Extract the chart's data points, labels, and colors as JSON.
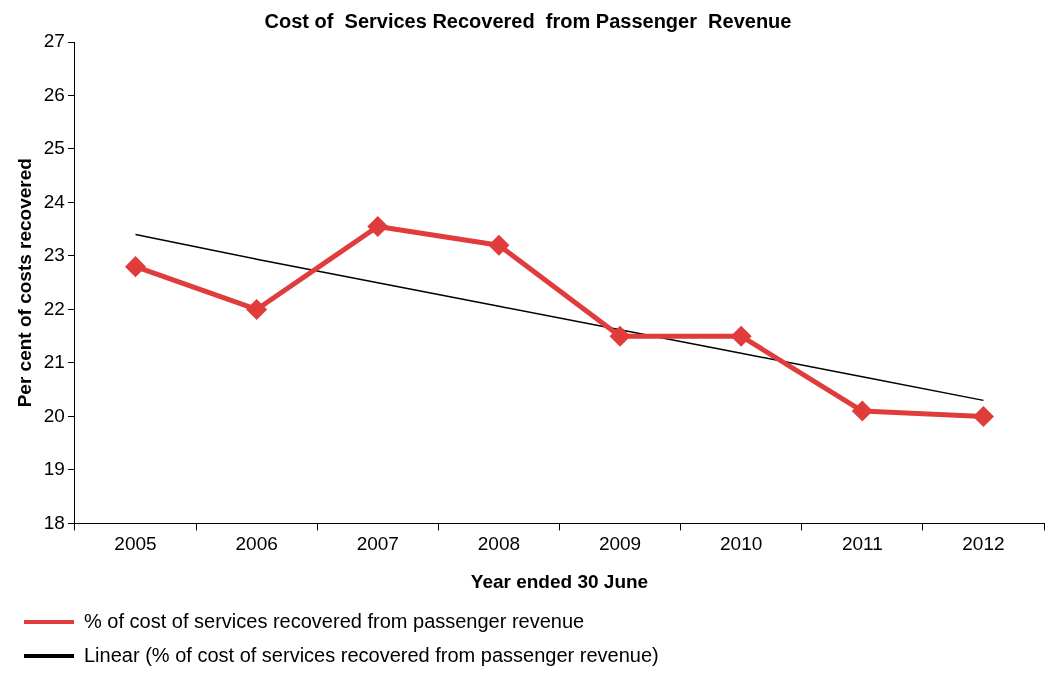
{
  "chart_data": {
    "type": "line",
    "title": "Cost of  Services Recovered  from Passenger  Revenue",
    "xlabel": "Year ended 30 June",
    "ylabel": "Per cent of costs recovered",
    "categories": [
      "2005",
      "2006",
      "2007",
      "2008",
      "2009",
      "2010",
      "2011",
      "2012"
    ],
    "series": [
      {
        "name": "% of cost of services recovered from passenger revenue",
        "color": "#e03c3c",
        "values": [
          22.8,
          22.0,
          23.55,
          23.2,
          21.5,
          21.5,
          20.1,
          20.0
        ],
        "marker": "diamond"
      },
      {
        "name": "Linear (% of cost of services recovered from passenger revenue)",
        "color": "#000000",
        "values": [
          23.4,
          22.94,
          22.5,
          22.06,
          21.62,
          21.18,
          20.74,
          20.3
        ],
        "marker": "none"
      }
    ],
    "ylim": [
      18,
      27
    ],
    "yticks": [
      18,
      19,
      20,
      21,
      22,
      23,
      24,
      25,
      26,
      27
    ],
    "grid": false,
    "legend": "bottom"
  }
}
